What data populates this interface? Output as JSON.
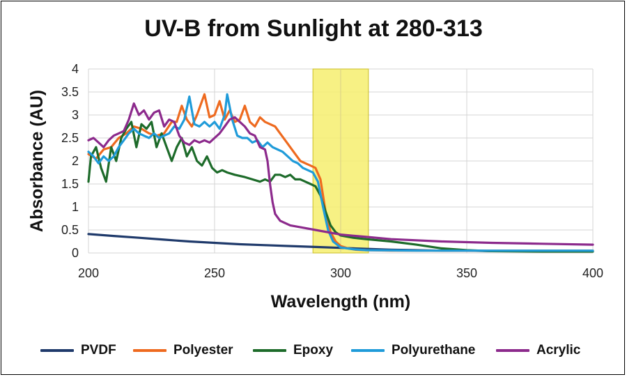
{
  "chart_data": {
    "type": "line",
    "title": "UV-B from Sunlight at 280-313",
    "xlabel": "Wavelength (nm)",
    "ylabel": "Absorbance (AU)",
    "xlim": [
      200,
      400
    ],
    "ylim": [
      0,
      4
    ],
    "xticks": [
      "200",
      "250",
      "300",
      "350",
      "400"
    ],
    "yticks": [
      "0",
      "0.5",
      "1",
      "1.5",
      "2",
      "2.5",
      "3",
      "3.5",
      "4"
    ],
    "grid": true,
    "legend_position": "bottom",
    "highlight_band": {
      "x_start": 289,
      "x_end": 311,
      "color": "#f6ee6e"
    },
    "series": [
      {
        "name": "PVDF",
        "color": "#1f3a6b",
        "points": [
          [
            200,
            0.41
          ],
          [
            210,
            0.37
          ],
          [
            220,
            0.33
          ],
          [
            230,
            0.29
          ],
          [
            240,
            0.25
          ],
          [
            250,
            0.22
          ],
          [
            260,
            0.19
          ],
          [
            270,
            0.17
          ],
          [
            280,
            0.15
          ],
          [
            290,
            0.13
          ],
          [
            300,
            0.11
          ],
          [
            310,
            0.09
          ],
          [
            320,
            0.07
          ],
          [
            330,
            0.06
          ],
          [
            340,
            0.05
          ],
          [
            350,
            0.05
          ],
          [
            360,
            0.04
          ],
          [
            370,
            0.04
          ],
          [
            380,
            0.04
          ],
          [
            390,
            0.04
          ],
          [
            400,
            0.04
          ]
        ]
      },
      {
        "name": "Polyester",
        "color": "#ee6a1f",
        "points": [
          [
            200,
            2.15
          ],
          [
            203,
            2.05
          ],
          [
            206,
            2.25
          ],
          [
            209,
            2.3
          ],
          [
            212,
            2.5
          ],
          [
            215,
            2.6
          ],
          [
            218,
            2.75
          ],
          [
            221,
            2.7
          ],
          [
            224,
            2.6
          ],
          [
            227,
            2.55
          ],
          [
            230,
            2.6
          ],
          [
            233,
            2.85
          ],
          [
            235,
            2.85
          ],
          [
            237,
            3.2
          ],
          [
            239,
            2.9
          ],
          [
            241,
            2.75
          ],
          [
            243,
            3.0
          ],
          [
            245,
            3.3
          ],
          [
            246,
            3.45
          ],
          [
            248,
            2.95
          ],
          [
            250,
            3.0
          ],
          [
            252,
            3.3
          ],
          [
            254,
            2.9
          ],
          [
            256,
            3.1
          ],
          [
            258,
            2.85
          ],
          [
            260,
            2.9
          ],
          [
            262,
            3.2
          ],
          [
            264,
            2.85
          ],
          [
            266,
            2.75
          ],
          [
            268,
            2.95
          ],
          [
            270,
            2.85
          ],
          [
            272,
            2.8
          ],
          [
            274,
            2.75
          ],
          [
            276,
            2.6
          ],
          [
            278,
            2.45
          ],
          [
            280,
            2.3
          ],
          [
            282,
            2.15
          ],
          [
            284,
            2.0
          ],
          [
            286,
            1.95
          ],
          [
            288,
            1.9
          ],
          [
            290,
            1.85
          ],
          [
            292,
            1.6
          ],
          [
            294,
            0.9
          ],
          [
            296,
            0.45
          ],
          [
            298,
            0.25
          ],
          [
            300,
            0.15
          ],
          [
            303,
            0.1
          ],
          [
            306,
            0.07
          ],
          [
            310,
            0.06
          ],
          [
            320,
            0.05
          ],
          [
            340,
            0.05
          ],
          [
            360,
            0.05
          ],
          [
            400,
            0.05
          ]
        ]
      },
      {
        "name": "Epoxy",
        "color": "#1d6b2a",
        "points": [
          [
            200,
            1.55
          ],
          [
            201,
            2.1
          ],
          [
            203,
            2.3
          ],
          [
            205,
            1.85
          ],
          [
            207,
            1.55
          ],
          [
            209,
            2.3
          ],
          [
            211,
            2.0
          ],
          [
            213,
            2.5
          ],
          [
            215,
            2.7
          ],
          [
            217,
            2.85
          ],
          [
            219,
            2.3
          ],
          [
            221,
            2.8
          ],
          [
            223,
            2.7
          ],
          [
            225,
            2.85
          ],
          [
            227,
            2.3
          ],
          [
            229,
            2.6
          ],
          [
            231,
            2.3
          ],
          [
            233,
            2.0
          ],
          [
            235,
            2.3
          ],
          [
            237,
            2.5
          ],
          [
            239,
            2.1
          ],
          [
            241,
            2.3
          ],
          [
            243,
            2.0
          ],
          [
            245,
            1.9
          ],
          [
            247,
            2.1
          ],
          [
            249,
            1.85
          ],
          [
            251,
            1.75
          ],
          [
            253,
            1.8
          ],
          [
            255,
            1.75
          ],
          [
            258,
            1.7
          ],
          [
            262,
            1.65
          ],
          [
            265,
            1.6
          ],
          [
            268,
            1.55
          ],
          [
            270,
            1.6
          ],
          [
            272,
            1.55
          ],
          [
            274,
            1.7
          ],
          [
            276,
            1.7
          ],
          [
            278,
            1.65
          ],
          [
            280,
            1.7
          ],
          [
            282,
            1.6
          ],
          [
            284,
            1.6
          ],
          [
            286,
            1.55
          ],
          [
            288,
            1.5
          ],
          [
            290,
            1.45
          ],
          [
            292,
            1.25
          ],
          [
            294,
            0.9
          ],
          [
            296,
            0.6
          ],
          [
            298,
            0.45
          ],
          [
            300,
            0.38
          ],
          [
            305,
            0.33
          ],
          [
            310,
            0.3
          ],
          [
            320,
            0.25
          ],
          [
            330,
            0.18
          ],
          [
            340,
            0.1
          ],
          [
            350,
            0.06
          ],
          [
            360,
            0.04
          ],
          [
            380,
            0.03
          ],
          [
            400,
            0.03
          ]
        ]
      },
      {
        "name": "Polyurethane",
        "color": "#1f9bd9",
        "points": [
          [
            200,
            2.2
          ],
          [
            202,
            2.1
          ],
          [
            204,
            1.95
          ],
          [
            206,
            2.1
          ],
          [
            208,
            2.0
          ],
          [
            210,
            2.1
          ],
          [
            212,
            2.3
          ],
          [
            214,
            2.45
          ],
          [
            216,
            2.6
          ],
          [
            218,
            2.7
          ],
          [
            220,
            2.6
          ],
          [
            222,
            2.55
          ],
          [
            224,
            2.5
          ],
          [
            226,
            2.6
          ],
          [
            228,
            2.5
          ],
          [
            230,
            2.55
          ],
          [
            232,
            2.6
          ],
          [
            234,
            2.75
          ],
          [
            236,
            2.7
          ],
          [
            238,
            2.9
          ],
          [
            240,
            3.4
          ],
          [
            242,
            2.8
          ],
          [
            244,
            2.75
          ],
          [
            246,
            2.85
          ],
          [
            248,
            2.75
          ],
          [
            250,
            2.85
          ],
          [
            252,
            2.7
          ],
          [
            254,
            3.0
          ],
          [
            255,
            3.45
          ],
          [
            257,
            2.9
          ],
          [
            259,
            2.55
          ],
          [
            261,
            2.5
          ],
          [
            263,
            2.5
          ],
          [
            265,
            2.4
          ],
          [
            267,
            2.45
          ],
          [
            269,
            2.3
          ],
          [
            271,
            2.4
          ],
          [
            273,
            2.3
          ],
          [
            275,
            2.25
          ],
          [
            277,
            2.2
          ],
          [
            279,
            2.1
          ],
          [
            281,
            2.0
          ],
          [
            283,
            1.95
          ],
          [
            285,
            1.85
          ],
          [
            287,
            1.8
          ],
          [
            289,
            1.75
          ],
          [
            291,
            1.55
          ],
          [
            293,
            1.0
          ],
          [
            295,
            0.5
          ],
          [
            297,
            0.25
          ],
          [
            300,
            0.12
          ],
          [
            305,
            0.08
          ],
          [
            310,
            0.06
          ],
          [
            330,
            0.05
          ],
          [
            360,
            0.05
          ],
          [
            400,
            0.05
          ]
        ]
      },
      {
        "name": "Acrylic",
        "color": "#8c2a8c",
        "points": [
          [
            200,
            2.45
          ],
          [
            202,
            2.5
          ],
          [
            204,
            2.4
          ],
          [
            206,
            2.3
          ],
          [
            208,
            2.45
          ],
          [
            210,
            2.55
          ],
          [
            212,
            2.6
          ],
          [
            214,
            2.65
          ],
          [
            216,
            2.9
          ],
          [
            218,
            3.25
          ],
          [
            220,
            3.0
          ],
          [
            222,
            3.1
          ],
          [
            224,
            2.9
          ],
          [
            226,
            3.05
          ],
          [
            228,
            3.1
          ],
          [
            230,
            2.75
          ],
          [
            232,
            2.9
          ],
          [
            234,
            2.85
          ],
          [
            236,
            2.55
          ],
          [
            238,
            2.4
          ],
          [
            240,
            2.35
          ],
          [
            242,
            2.45
          ],
          [
            244,
            2.4
          ],
          [
            246,
            2.45
          ],
          [
            248,
            2.4
          ],
          [
            250,
            2.5
          ],
          [
            252,
            2.6
          ],
          [
            254,
            2.75
          ],
          [
            256,
            2.9
          ],
          [
            258,
            2.95
          ],
          [
            260,
            2.85
          ],
          [
            262,
            2.75
          ],
          [
            264,
            2.6
          ],
          [
            266,
            2.55
          ],
          [
            268,
            2.3
          ],
          [
            270,
            2.25
          ],
          [
            271,
            2.0
          ],
          [
            272,
            1.5
          ],
          [
            273,
            1.1
          ],
          [
            274,
            0.85
          ],
          [
            276,
            0.7
          ],
          [
            280,
            0.6
          ],
          [
            285,
            0.55
          ],
          [
            290,
            0.5
          ],
          [
            300,
            0.4
          ],
          [
            310,
            0.35
          ],
          [
            320,
            0.3
          ],
          [
            340,
            0.25
          ],
          [
            360,
            0.22
          ],
          [
            380,
            0.2
          ],
          [
            400,
            0.18
          ]
        ]
      }
    ]
  }
}
